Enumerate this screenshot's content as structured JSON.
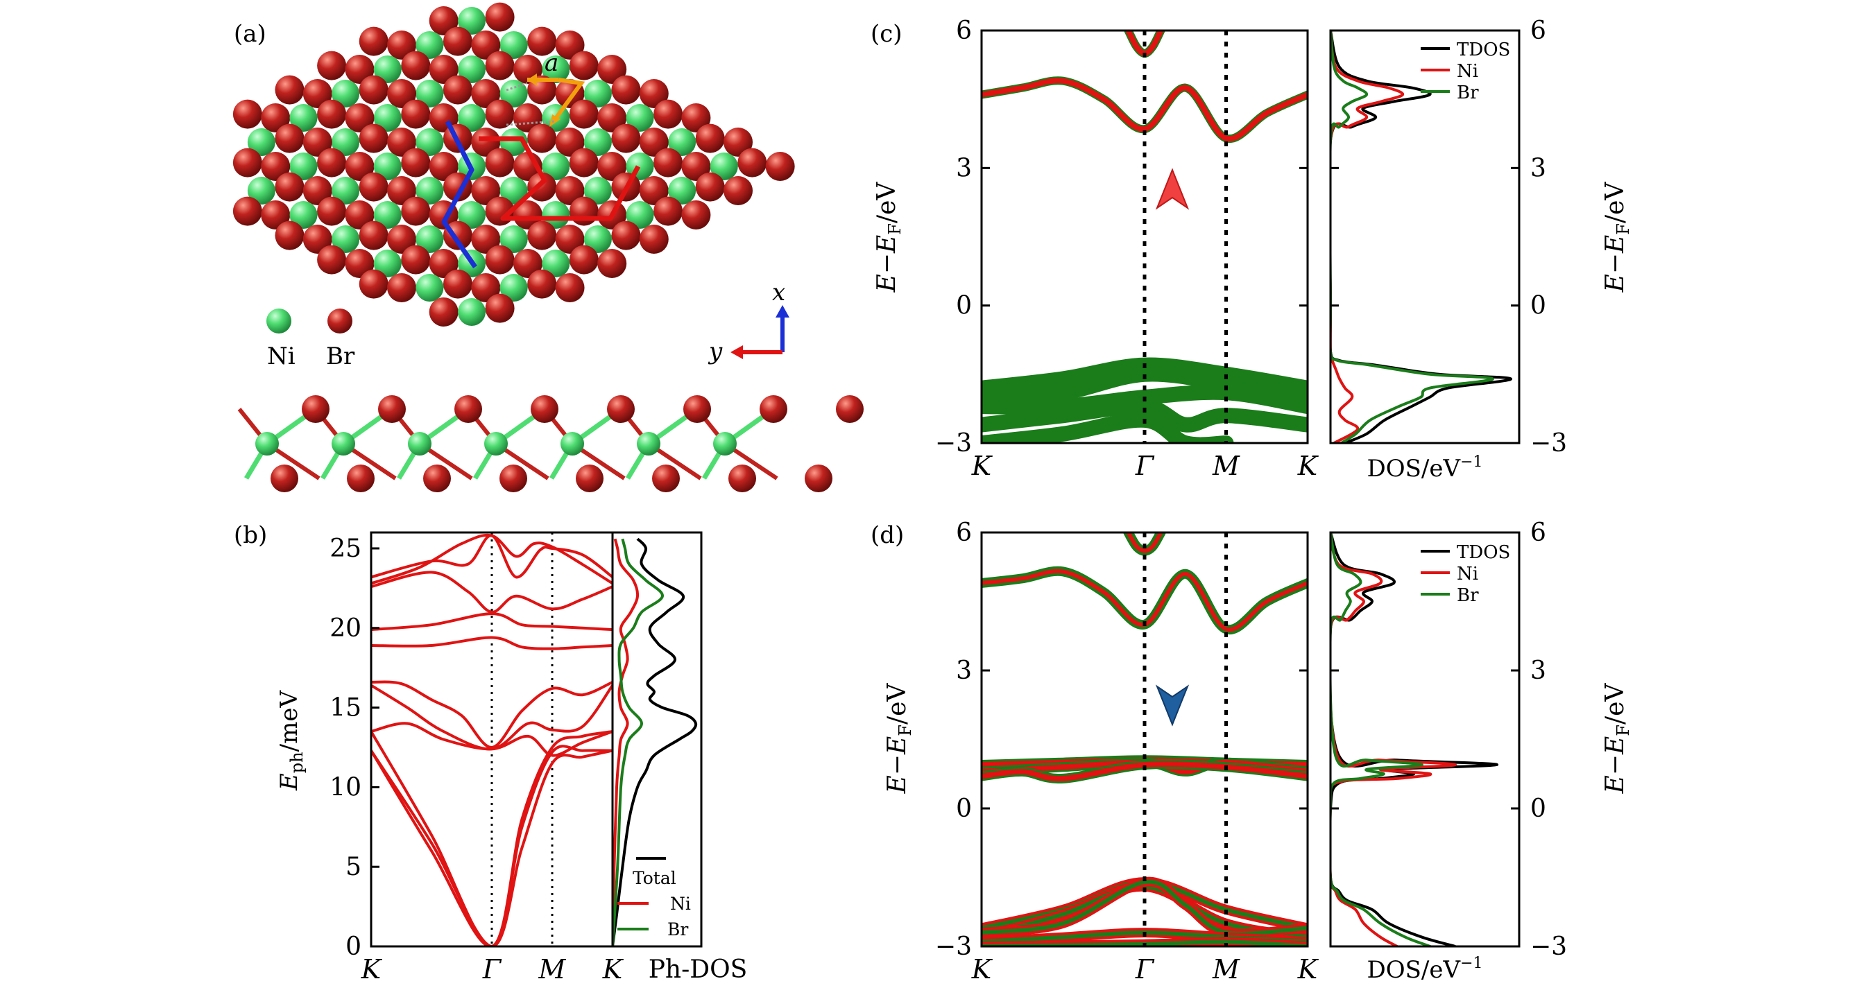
{
  "panel_labels": {
    "a": "(a)",
    "b": "(b)",
    "c": "(c)",
    "d": "(d)"
  },
  "structure": {
    "lattice_label": "a",
    "legend": [
      {
        "name": "Ni",
        "color": "#4fdd72"
      },
      {
        "name": "Br",
        "color": "#c0221e"
      }
    ],
    "axes": {
      "x": "x",
      "y": "y"
    },
    "colors": {
      "ni": "#4fdd72",
      "br": "#c0221e",
      "blue_path": "#1b2fd6",
      "red_path": "#e01313",
      "lattice_vec": "#f2a10c"
    }
  },
  "chart_data": [
    {
      "type": "line",
      "id": "phonon",
      "ylabel": "E_ph/meV",
      "ylim": [
        0,
        26
      ],
      "yticks": [
        0,
        5,
        10,
        15,
        20,
        25
      ],
      "kpoints": [
        "K",
        "Γ",
        "M",
        "K"
      ],
      "kpos": [
        0,
        1,
        1.5,
        2
      ],
      "dos_title": "Ph-DOS",
      "legend": [
        "Total",
        "Ni",
        "Br"
      ],
      "series_colors": {
        "Total": "#000000",
        "Ni": "#e01313",
        "Br": "#1a7d1a"
      },
      "bands_color": "#e01313",
      "bands": [
        {
          "k": [
            0,
            0.5,
            1,
            1.25,
            1.5,
            1.75,
            2
          ],
          "E": [
            12.3,
            6.5,
            0,
            6.2,
            11.5,
            11.9,
            12.3
          ]
        },
        {
          "k": [
            0,
            0.5,
            1,
            1.25,
            1.5,
            1.75,
            2
          ],
          "E": [
            12.3,
            6.0,
            0,
            7.5,
            12.2,
            12.3,
            12.3
          ]
        },
        {
          "k": [
            0,
            0.5,
            1,
            1.25,
            1.5,
            1.75,
            2
          ],
          "E": [
            13.5,
            7.0,
            0,
            8.0,
            12.5,
            13.2,
            13.5
          ]
        },
        {
          "k": [
            0,
            0.3,
            0.6,
            1,
            1.3,
            1.5,
            1.75,
            2
          ],
          "E": [
            13.5,
            14.0,
            13.0,
            12.4,
            13.2,
            12.0,
            12.8,
            13.5
          ]
        },
        {
          "k": [
            0,
            0.3,
            0.6,
            1,
            1.3,
            1.5,
            1.75,
            2
          ],
          "E": [
            16.4,
            15.0,
            13.5,
            12.4,
            14.0,
            13.6,
            13.8,
            16.4
          ]
        },
        {
          "k": [
            0,
            0.25,
            0.5,
            0.75,
            1,
            1.25,
            1.5,
            1.75,
            2
          ],
          "E": [
            16.6,
            16.5,
            15.5,
            14.5,
            12.5,
            14.8,
            16.2,
            15.8,
            16.6
          ]
        },
        {
          "k": [
            0,
            0.5,
            1,
            1.25,
            1.5,
            1.75,
            2
          ],
          "E": [
            18.9,
            18.9,
            19.4,
            18.8,
            18.7,
            18.8,
            18.9
          ]
        },
        {
          "k": [
            0,
            0.5,
            1,
            1.25,
            1.5,
            1.75,
            2
          ],
          "E": [
            19.9,
            20.2,
            20.9,
            20.2,
            20.1,
            20.0,
            19.9
          ]
        },
        {
          "k": [
            0,
            0.5,
            0.8,
            1,
            1.2,
            1.5,
            1.75,
            2
          ],
          "E": [
            22.6,
            23.5,
            22.3,
            21.0,
            22.0,
            21.2,
            21.8,
            22.6
          ]
        },
        {
          "k": [
            0,
            0.4,
            0.75,
            1,
            1.2,
            1.35,
            1.5,
            1.75,
            2
          ],
          "E": [
            22.8,
            23.8,
            25.3,
            25.8,
            24.5,
            25.3,
            25.1,
            24.0,
            22.8
          ]
        },
        {
          "k": [
            0,
            0.5,
            0.8,
            1,
            1.2,
            1.4,
            1.5,
            1.75,
            2
          ],
          "E": [
            23.2,
            24.2,
            24.0,
            25.8,
            23.2,
            24.9,
            25.0,
            24.6,
            23.2
          ]
        }
      ],
      "dos_total": {
        "E": [
          0,
          2,
          5,
          8,
          10,
          11,
          12,
          13,
          13.5,
          14,
          14.5,
          15,
          15.5,
          16,
          16.5,
          17,
          18,
          19,
          20,
          21,
          22,
          23,
          24,
          25,
          25.6
        ],
        "D": [
          0,
          0.05,
          0.12,
          0.2,
          0.3,
          0.4,
          0.5,
          0.8,
          0.95,
          1.0,
          0.9,
          0.6,
          0.45,
          0.5,
          0.42,
          0.5,
          0.75,
          0.55,
          0.45,
          0.65,
          0.85,
          0.55,
          0.35,
          0.4,
          0.3
        ]
      },
      "dos_ni": {
        "E": [
          0,
          5,
          10,
          12,
          13,
          14,
          15,
          16,
          17,
          18,
          19,
          20,
          21,
          22,
          23,
          24,
          25,
          25.6
        ],
        "D": [
          0,
          0.02,
          0.05,
          0.08,
          0.1,
          0.18,
          0.1,
          0.08,
          0.12,
          0.18,
          0.15,
          0.1,
          0.22,
          0.3,
          0.25,
          0.1,
          0.06,
          0.03
        ]
      },
      "dos_br": {
        "E": [
          0,
          5,
          10,
          12,
          13,
          14,
          15,
          16,
          17,
          18,
          19,
          20,
          21,
          22,
          23,
          24,
          25,
          25.6
        ],
        "D": [
          0,
          0.06,
          0.1,
          0.15,
          0.2,
          0.35,
          0.2,
          0.12,
          0.1,
          0.08,
          0.1,
          0.25,
          0.35,
          0.6,
          0.4,
          0.2,
          0.15,
          0.12
        ]
      }
    },
    {
      "type": "line",
      "id": "bands_up",
      "spin": "up",
      "ylabel": "E-E_F/eV",
      "ylim": [
        -3,
        6
      ],
      "yticks": [
        -3,
        0,
        3,
        6
      ],
      "kpoints": [
        "K",
        "Γ",
        "M",
        "K"
      ],
      "kpos": [
        0,
        1,
        1.5,
        2
      ],
      "dos_xlabel": "DOS/eV^-1",
      "legend": [
        "TDOS",
        "Ni",
        "Br"
      ],
      "series_colors": {
        "TDOS": "#000000",
        "Ni": "#e01313",
        "Br": "#1a7d1a"
      },
      "conduction": [
        {
          "k": [
            0,
            0.25,
            0.5,
            0.75,
            1,
            1.25,
            1.5,
            1.75,
            2
          ],
          "E": [
            4.6,
            4.75,
            4.9,
            4.5,
            3.85,
            4.75,
            3.65,
            4.2,
            4.6
          ]
        },
        {
          "k": [
            0.9,
            0.95,
            1,
            1.05,
            1.1
          ],
          "E": [
            6.0,
            5.65,
            5.5,
            5.65,
            6.0
          ]
        }
      ],
      "valence": [
        {
          "k": [
            0,
            0.5,
            1,
            1.5,
            2
          ],
          "E": [
            -1.8,
            -1.6,
            -1.3,
            -1.5,
            -1.8
          ]
        },
        {
          "k": [
            0,
            0.5,
            1,
            1.5,
            2
          ],
          "E": [
            -2.0,
            -1.9,
            -1.5,
            -1.7,
            -2.0
          ]
        },
        {
          "k": [
            0,
            0.5,
            1,
            1.5,
            2
          ],
          "E": [
            -2.2,
            -2.2,
            -2.0,
            -1.9,
            -2.2
          ]
        },
        {
          "k": [
            0,
            0.5,
            1,
            1.25,
            1.5,
            2
          ],
          "E": [
            -2.6,
            -2.4,
            -2.2,
            -2.6,
            -2.4,
            -2.6
          ]
        },
        {
          "k": [
            0,
            0.5,
            1,
            1.25,
            1.5
          ],
          "E": [
            -3.0,
            -2.8,
            -2.5,
            -3.0,
            -3.0
          ]
        }
      ],
      "dos_total": {
        "E": [
          -3,
          -2.8,
          -2.5,
          -2.2,
          -2.0,
          -1.8,
          -1.6,
          -1.5,
          -1.3,
          -1.2,
          -1.0,
          0,
          3.6,
          3.9,
          4.1,
          4.3,
          4.45,
          4.6,
          4.75,
          4.9,
          5.2,
          6
        ],
        "D": [
          0.08,
          0.2,
          0.3,
          0.45,
          0.55,
          0.65,
          1.0,
          0.6,
          0.25,
          0.05,
          0,
          0,
          0,
          0.12,
          0.25,
          0.18,
          0.35,
          0.55,
          0.45,
          0.2,
          0.05,
          0
        ]
      },
      "dos_ni": {
        "E": [
          -3,
          -2.7,
          -2.5,
          -2.3,
          -2.0,
          -1.8,
          -1.6,
          -1.4,
          -1.2,
          -1.0,
          0,
          3.6,
          3.9,
          4.1,
          4.3,
          4.45,
          4.6,
          4.75,
          4.9,
          5.2,
          6
        ],
        "D": [
          0.02,
          0.15,
          0.08,
          0.05,
          0.12,
          0.08,
          0.05,
          0.03,
          0.01,
          0,
          0,
          0,
          0.1,
          0.2,
          0.15,
          0.28,
          0.4,
          0.32,
          0.15,
          0.03,
          0
        ]
      },
      "dos_br": {
        "E": [
          -3,
          -2.8,
          -2.5,
          -2.2,
          -2.0,
          -1.8,
          -1.6,
          -1.5,
          -1.3,
          -1.2,
          -1.0,
          0,
          3.6,
          3.9,
          4.1,
          4.3,
          4.45,
          4.6,
          4.75,
          4.9,
          5.2,
          6
        ],
        "D": [
          0.06,
          0.14,
          0.22,
          0.38,
          0.5,
          0.55,
          0.9,
          0.55,
          0.22,
          0.04,
          0,
          0,
          0,
          0.05,
          0.1,
          0.07,
          0.12,
          0.2,
          0.15,
          0.07,
          0.02,
          0
        ]
      }
    },
    {
      "type": "line",
      "id": "bands_down",
      "spin": "down",
      "ylabel": "E-E_F/eV",
      "ylim": [
        -3,
        6
      ],
      "yticks": [
        -3,
        0,
        3,
        6
      ],
      "kpoints": [
        "K",
        "Γ",
        "M",
        "K"
      ],
      "kpos": [
        0,
        1,
        1.5,
        2
      ],
      "dos_xlabel": "DOS/eV^-1",
      "legend": [
        "TDOS",
        "Ni",
        "Br"
      ],
      "series_colors": {
        "TDOS": "#000000",
        "Ni": "#e01313",
        "Br": "#1a7d1a"
      },
      "conduction": [
        {
          "k": [
            0,
            0.25,
            0.5,
            0.75,
            1,
            1.25,
            1.5,
            1.75,
            2
          ],
          "E": [
            4.9,
            5.0,
            5.15,
            4.7,
            4.0,
            5.1,
            3.9,
            4.5,
            4.9
          ]
        },
        {
          "k": [
            0.9,
            0.95,
            1,
            1.05,
            1.1
          ],
          "E": [
            6.0,
            5.7,
            5.6,
            5.7,
            6.0
          ]
        }
      ],
      "middle": [
        {
          "k": [
            0,
            0.5,
            1,
            1.5,
            2
          ],
          "E": [
            0.95,
            1.0,
            1.05,
            1.0,
            0.95
          ]
        },
        {
          "k": [
            0,
            0.5,
            1,
            1.25,
            1.5,
            2
          ],
          "E": [
            0.8,
            0.9,
            1.0,
            0.8,
            1.0,
            0.8
          ]
        },
        {
          "k": [
            0,
            0.25,
            0.5,
            1,
            1.5,
            2
          ],
          "E": [
            0.7,
            0.8,
            0.65,
            0.95,
            0.9,
            0.7
          ]
        }
      ],
      "valence": [
        {
          "k": [
            0,
            0.5,
            1,
            1.5,
            2
          ],
          "E": [
            -2.6,
            -2.2,
            -1.6,
            -2.2,
            -2.6
          ]
        },
        {
          "k": [
            0,
            0.5,
            1,
            1.5,
            2
          ],
          "E": [
            -2.8,
            -2.3,
            -1.7,
            -2.5,
            -2.8
          ]
        },
        {
          "k": [
            0,
            0.5,
            1,
            1.25,
            1.5,
            2
          ],
          "E": [
            -2.7,
            -2.5,
            -1.6,
            -2.1,
            -2.7,
            -2.6
          ]
        },
        {
          "k": [
            0,
            0.5,
            1,
            1.5,
            2
          ],
          "E": [
            -2.9,
            -2.8,
            -2.7,
            -2.8,
            -2.9
          ]
        },
        {
          "k": [
            0,
            1,
            1.5,
            2
          ],
          "E": [
            -3.0,
            -2.95,
            -2.9,
            -3.0
          ]
        }
      ],
      "dos_total": {
        "E": [
          -3,
          -2.8,
          -2.5,
          -2.2,
          -2.0,
          -1.8,
          -1.5,
          0,
          0.55,
          0.65,
          0.75,
          0.85,
          0.95,
          1.05,
          1.15,
          3.9,
          4.1,
          4.3,
          4.5,
          4.7,
          4.9,
          5.1,
          5.3,
          6
        ],
        "D": [
          0.75,
          0.55,
          0.35,
          0.25,
          0.1,
          0.05,
          0,
          0,
          0.05,
          0.3,
          0.5,
          0.35,
          1.0,
          0.4,
          0.05,
          0,
          0.12,
          0.18,
          0.25,
          0.2,
          0.38,
          0.3,
          0.08,
          0
        ]
      },
      "dos_ni": {
        "E": [
          -3,
          -2.8,
          -2.5,
          -2.2,
          -2.0,
          -1.8,
          -1.5,
          0,
          0.55,
          0.65,
          0.75,
          0.85,
          0.95,
          1.05,
          1.15,
          3.9,
          4.1,
          4.3,
          4.5,
          4.7,
          4.9,
          5.1,
          5.3,
          6
        ],
        "D": [
          0.4,
          0.3,
          0.2,
          0.15,
          0.06,
          0.03,
          0,
          0,
          0.03,
          0.4,
          0.6,
          0.3,
          0.75,
          0.3,
          0.04,
          0,
          0.1,
          0.15,
          0.2,
          0.15,
          0.3,
          0.25,
          0.05,
          0
        ]
      },
      "dos_br": {
        "E": [
          -3,
          -2.8,
          -2.5,
          -2.2,
          -2.0,
          -1.8,
          -1.5,
          0,
          0.55,
          0.65,
          0.75,
          0.85,
          0.95,
          1.05,
          1.15,
          3.9,
          4.1,
          4.3,
          4.5,
          4.7,
          4.9,
          5.1,
          5.3,
          6
        ],
        "D": [
          0.6,
          0.45,
          0.3,
          0.2,
          0.08,
          0.04,
          0,
          0,
          0.02,
          0.18,
          0.32,
          0.22,
          0.55,
          0.22,
          0.03,
          0,
          0.06,
          0.09,
          0.12,
          0.1,
          0.18,
          0.14,
          0.04,
          0
        ]
      }
    }
  ]
}
